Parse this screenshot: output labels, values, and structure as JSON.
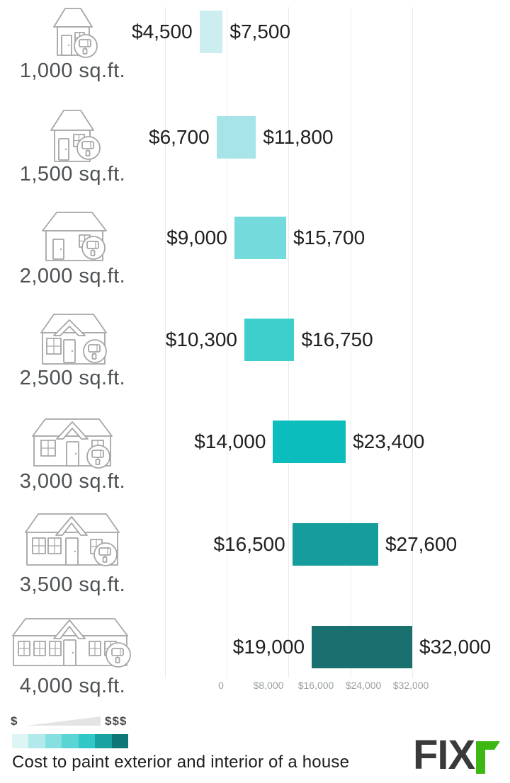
{
  "chart_data": {
    "type": "bar",
    "subtype": "horizontal-range-bars",
    "title": "Cost to paint exterior and interior of a house",
    "categories": [
      "1,000 sq.ft.",
      "1,500 sq.ft.",
      "2,000 sq.ft.",
      "2,500 sq.ft.",
      "3,000 sq.ft.",
      "3,500 sq.ft.",
      "4,000 sq.ft."
    ],
    "rows": [
      {
        "label": "1,000 sq.ft.",
        "low": 4500,
        "high": 7500,
        "low_label": "$4,500",
        "high_label": "$7,500",
        "color": "#cdeef1",
        "icon": "house-1000-sqft-icon"
      },
      {
        "label": "1,500 sq.ft.",
        "low": 6700,
        "high": 11800,
        "low_label": "$6,700",
        "high_label": "$11,800",
        "color": "#a6e4e7",
        "icon": "house-1500-sqft-icon"
      },
      {
        "label": "2,000 sq.ft.",
        "low": 9000,
        "high": 15700,
        "low_label": "$9,000",
        "high_label": "$15,700",
        "color": "#74dadb",
        "icon": "house-2000-sqft-icon"
      },
      {
        "label": "2,500 sq.ft.",
        "low": 10300,
        "high": 16750,
        "low_label": "$10,300",
        "high_label": "$16,750",
        "color": "#3ecfcc",
        "icon": "house-2500-sqft-icon"
      },
      {
        "label": "3,000 sq.ft.",
        "low": 14000,
        "high": 23400,
        "low_label": "$14,000",
        "high_label": "$23,400",
        "color": "#0cbdbd",
        "icon": "house-3000-sqft-icon"
      },
      {
        "label": "3,500 sq.ft.",
        "low": 16500,
        "high": 27600,
        "low_label": "$16,500",
        "high_label": "$27,600",
        "color": "#149d9b",
        "icon": "house-3500-sqft-icon"
      },
      {
        "label": "4,000 sq.ft.",
        "low": 19000,
        "high": 32000,
        "low_label": "$19,000",
        "high_label": "$32,000",
        "color": "#1a706e",
        "icon": "house-4000-sqft-icon"
      }
    ],
    "x_axis": {
      "tick_labels": [
        "0",
        "$8,000",
        "$16,000",
        "$24,000",
        "$32,000"
      ],
      "tick_values": [
        0,
        8000,
        16000,
        24000,
        32000
      ],
      "range": [
        0,
        32000
      ],
      "grid": true
    },
    "legend": {
      "position": "bottom-left",
      "low_symbol": "$",
      "high_symbol": "$$$",
      "swatches": [
        "#def5f5",
        "#b2eaeb",
        "#86e0e0",
        "#5ad5d4",
        "#2fc8c7",
        "#18a3a0",
        "#0e7674"
      ]
    }
  },
  "footer": {
    "caption": "Cost to paint exterior and interior of a house"
  },
  "brand": {
    "name": "Fixr",
    "text_dark": "FIX",
    "dark_color": "#3a3a3a",
    "green_color": "#3db714"
  }
}
